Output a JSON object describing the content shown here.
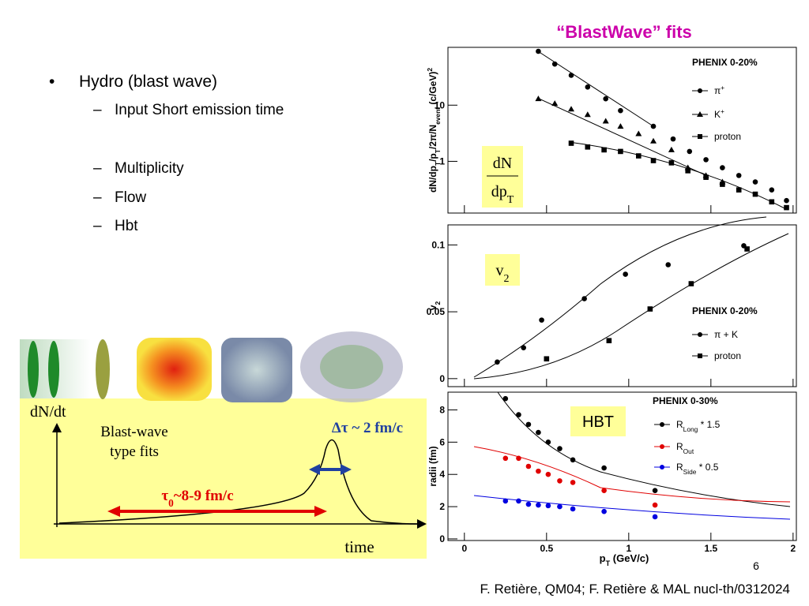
{
  "title": "“BlastWave” fits",
  "bullets": [
    {
      "text": "Hydro (blast wave)",
      "subs": [
        "Input Short emission time",
        "Multiplicity",
        "Flow",
        "Hbt"
      ]
    }
  ],
  "sketch": {
    "ylabel": "dN/dt",
    "fit_label": [
      "Blast-wave",
      "type fits"
    ],
    "dtau": "Δτ ~ 2 fm/c",
    "tau": [
      {
        "t": "τ"
      },
      {
        "t": "0",
        "k": "sub"
      },
      {
        "t": "~8-9 fm/c"
      }
    ],
    "xlabel": "time"
  },
  "footer": "F. Retière, QM04; F. Retière & MAL nucl-th/0312024",
  "page_number": "6",
  "plots": {
    "xlim": [
      -0.1,
      2.02
    ],
    "xticks": [
      0,
      0.5,
      1,
      1.5,
      2
    ],
    "xlabel": [
      {
        "t": "p"
      },
      {
        "t": "T",
        "k": "sub"
      },
      {
        "t": " (GeV/c)"
      }
    ],
    "panels": [
      {
        "log": true,
        "ylim": [
          0.12,
          107
        ],
        "yticks": [
          1,
          10
        ],
        "ylabel": [
          {
            "t": "dN/dp"
          },
          {
            "t": "T",
            "k": "sub"
          },
          {
            "t": "/p"
          },
          {
            "t": "T",
            "k": "sub"
          },
          {
            "t": "/2π/N"
          },
          {
            "t": "event",
            "k": "sub"
          },
          {
            "t": " (c/GeV)"
          },
          {
            "t": "2",
            "k": "sup"
          }
        ],
        "box": {
          "num": "dN",
          "den": [
            {
              "t": "dp"
            },
            {
              "t": "T",
              "k": "sub"
            }
          ]
        },
        "legend_title": "PHENIX 0-20%",
        "series": [
          {
            "name": [
              {
                "t": "π"
              },
              {
                "t": "+",
                "k": "sup"
              }
            ],
            "marker": "circle",
            "color": "#000000",
            "x": [
              0.45,
              0.55,
              0.65,
              0.75,
              0.86,
              0.95,
              1.15,
              1.27,
              1.37,
              1.47,
              1.57,
              1.67,
              1.77,
              1.87,
              1.96
            ],
            "y": [
              91,
              54,
              34,
              21,
              13,
              8,
              4.2,
              2.5,
              1.5,
              1.07,
              0.77,
              0.56,
              0.43,
              0.31,
              0.2
            ]
          },
          {
            "name": [
              {
                "t": "K"
              },
              {
                "t": "+",
                "k": "sup"
              }
            ],
            "marker": "triangle",
            "color": "#000000",
            "x": [
              0.45,
              0.55,
              0.65,
              0.75,
              0.86,
              0.95,
              1.06,
              1.15,
              1.26,
              1.36,
              1.47,
              1.57
            ],
            "y": [
              13,
              10.7,
              8.5,
              6.8,
              5.2,
              4.2,
              3.1,
              2.3,
              1.6,
              0.77,
              0.56,
              0.43
            ]
          },
          {
            "name": [
              {
                "t": "proton"
              }
            ],
            "marker": "square",
            "color": "#000000",
            "x": [
              0.65,
              0.75,
              0.85,
              0.95,
              1.06,
              1.15,
              1.26,
              1.36,
              1.47,
              1.57,
              1.67,
              1.77,
              1.87,
              1.96
            ],
            "y": [
              2.1,
              1.8,
              1.6,
              1.5,
              1.25,
              1.03,
              0.94,
              0.68,
              0.52,
              0.39,
              0.31,
              0.26,
              0.19,
              0.15
            ]
          }
        ]
      },
      {
        "log": false,
        "ylim": [
          -0.006,
          0.115
        ],
        "yticks": [
          0,
          0.05,
          0.1
        ],
        "ylabel": [
          {
            "t": "v"
          },
          {
            "t": "2",
            "k": "sub"
          }
        ],
        "box": {
          "label": [
            {
              "t": "v"
            },
            {
              "t": "2",
              "k": "sub"
            }
          ]
        },
        "legend_title": "PHENIX 0-20%",
        "series": [
          {
            "name": [
              {
                "t": "π + K"
              }
            ],
            "marker": "circle",
            "color": "#000000",
            "x": [
              0.2,
              0.36,
              0.47,
              0.73,
              0.98,
              1.24,
              1.7
            ],
            "y": [
              0.0124,
              0.0231,
              0.0438,
              0.0598,
              0.0781,
              0.0852,
              0.0994
            ]
          },
          {
            "name": [
              {
                "t": "proton"
              }
            ],
            "marker": "square",
            "color": "#000000",
            "x": [
              0.5,
              0.88,
              1.13,
              1.38,
              1.72
            ],
            "y": [
              0.0148,
              0.0284,
              0.0521,
              0.071,
              0.097
            ]
          }
        ]
      },
      {
        "log": false,
        "ylim": [
          -0.1,
          9.1
        ],
        "yticks": [
          0,
          2,
          4,
          6,
          8
        ],
        "ylabel": [
          {
            "t": "radii (fm)"
          }
        ],
        "box": {
          "label": [
            {
              "t": "HBT"
            }
          ]
        },
        "legend_title": "PHENIX 0-30%",
        "series": [
          {
            "name": [
              {
                "t": "R"
              },
              {
                "t": "Long",
                "k": "sub"
              },
              {
                "t": " * 1.5"
              }
            ],
            "marker": "circle",
            "color": "#000000",
            "x": [
              0.25,
              0.33,
              0.39,
              0.45,
              0.51,
              0.58,
              0.66,
              0.85,
              1.16
            ],
            "y": [
              8.7,
              7.7,
              7.1,
              6.6,
              6.0,
              5.6,
              4.9,
              4.4,
              3.0
            ]
          },
          {
            "name": [
              {
                "t": "R"
              },
              {
                "t": "Out",
                "k": "sub"
              }
            ],
            "marker": "circle",
            "color": "#e00000",
            "x": [
              0.25,
              0.33,
              0.39,
              0.45,
              0.51,
              0.58,
              0.66,
              0.85,
              1.16
            ],
            "y": [
              5.0,
              5.0,
              4.5,
              4.2,
              4.0,
              3.6,
              3.5,
              3.0,
              2.1
            ]
          },
          {
            "name": [
              {
                "t": "R"
              },
              {
                "t": "Side",
                "k": "sub"
              },
              {
                "t": " * 0.5"
              }
            ],
            "marker": "circle",
            "color": "#0000e0",
            "x": [
              0.25,
              0.33,
              0.39,
              0.45,
              0.51,
              0.58,
              0.66,
              0.85,
              1.16
            ],
            "y": [
              2.35,
              2.35,
              2.15,
              2.1,
              2.06,
              2.0,
              1.86,
              1.7,
              1.37
            ]
          }
        ]
      }
    ]
  }
}
